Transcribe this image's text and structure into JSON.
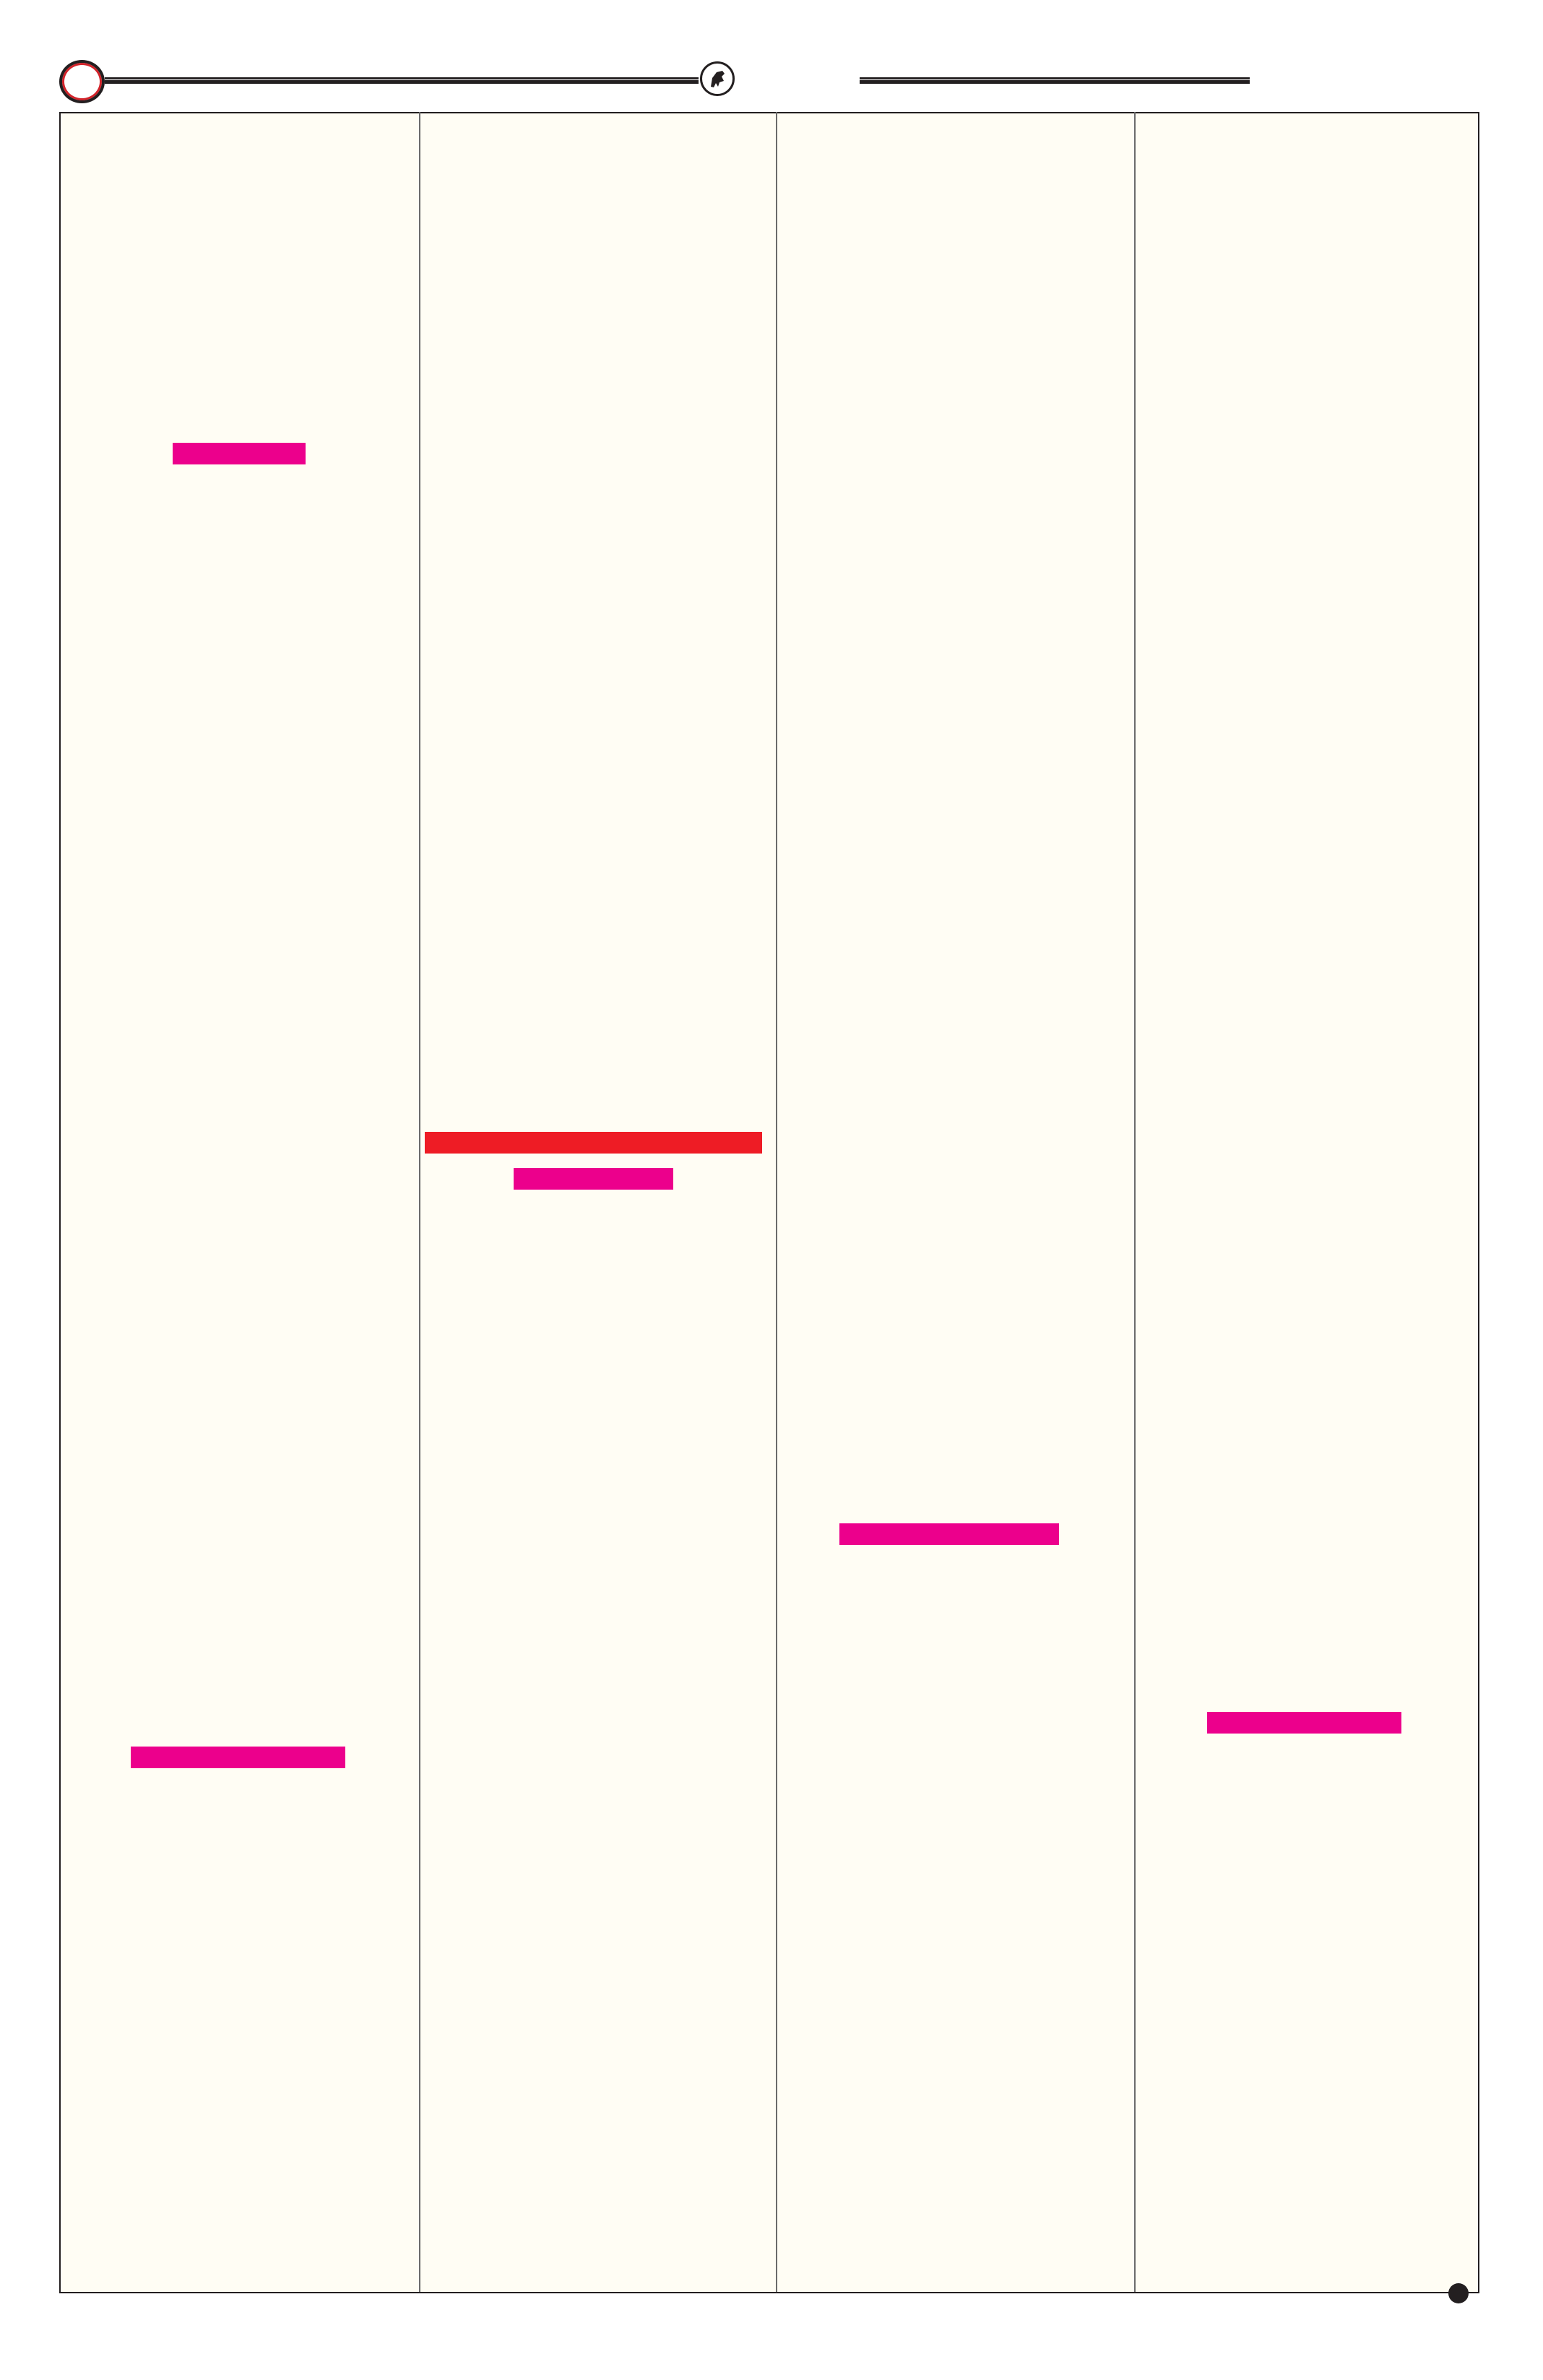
{
  "colors": {
    "page_background": "#fffdf4",
    "rule": "#231f20",
    "highlight_magenta": "#ec008c",
    "highlight_red": "#ee1c25",
    "ring_red": "#d2232a"
  },
  "header": {
    "left_icon": "red-ring-icon",
    "center_icon": "emblem-seal-icon"
  },
  "columns": 4,
  "highlights": [
    {
      "column": 1,
      "color": "#ec008c"
    },
    {
      "column": 2,
      "color": "#ee1c25"
    },
    {
      "column": 2,
      "color": "#ec008c"
    },
    {
      "column": 3,
      "color": "#ec008c"
    },
    {
      "column": 1,
      "color": "#ec008c"
    },
    {
      "column": 4,
      "color": "#ec008c"
    }
  ],
  "footer": {
    "icon": "bullet-dot-icon"
  }
}
